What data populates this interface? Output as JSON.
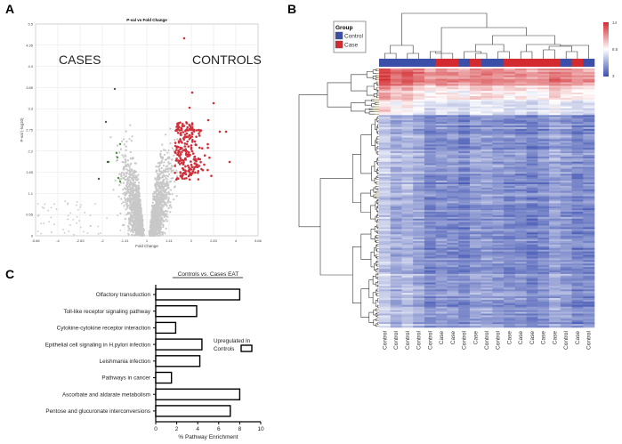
{
  "panel_labels": {
    "a": "A",
    "b": "B",
    "c": "C"
  },
  "chart_data": [
    {
      "type": "scatter",
      "panel": "A",
      "title": "P-val vs Fold Change",
      "xlabel": "Fold Change",
      "ylabel": "P-val (-log10)",
      "x_ticks": [
        "-5.66",
        "-4",
        "-2.83",
        "-2",
        "-1.41",
        "1",
        "1.41",
        "2",
        "2.83",
        "4",
        "5.66"
      ],
      "y_ticks": [
        "0",
        "0.55",
        "1.1",
        "1.65",
        "2.2",
        "2.75",
        "3.3",
        "3.85",
        "4.4",
        "4.95",
        "5.5"
      ],
      "ylim": [
        0,
        5.5
      ],
      "grid": true,
      "annotations": {
        "left": "CASES",
        "right": "CONTROLS"
      },
      "colors": {
        "not_significant": "#c8c8c8",
        "up_in_controls": "#d0303a",
        "up_in_cases": "#4a9a3a"
      }
    },
    {
      "type": "heatmap",
      "panel": "B",
      "legend_title": "Group",
      "legend": [
        {
          "name": "Control",
          "color": "#3b4fa8"
        },
        {
          "name": "Case",
          "color": "#d22a2f"
        }
      ],
      "columns": [
        "Control",
        "Control",
        "Control",
        "Control",
        "Control",
        "Case",
        "Case",
        "Control",
        "Case",
        "Control",
        "Control",
        "Case",
        "Case",
        "Case",
        "Case",
        "Case",
        "Control",
        "Case",
        "Control"
      ],
      "color_scale": {
        "min": 3,
        "mid": 8.5,
        "max": 14,
        "low_color": "#3b4fb0",
        "mid_color": "#ffffff",
        "high_color": "#d22a2f",
        "tick_labels": [
          "14",
          "8.5",
          "3"
        ]
      }
    },
    {
      "type": "bar",
      "orientation": "horizontal",
      "panel": "C",
      "title": "Controls vs. Cases EAT",
      "categories": [
        "Olfactory transduction",
        "Toll-like receptor signaling pathway",
        "Cytokine-cytokine receptor interaction",
        "Epithelial cell signaling in H.pylori infection",
        "Leishmania infection",
        "Pathways in cancer",
        "Ascorbate and aldarate metabolism",
        "Pentose and glucuronate interconversions"
      ],
      "series": [
        {
          "name": "Upregulated In Controls",
          "values": [
            8.0,
            3.9,
            1.9,
            4.4,
            4.2,
            1.5,
            8.0,
            7.1
          ]
        }
      ],
      "xlabel": "% Pathway Enrichment",
      "xlim": [
        0,
        10
      ],
      "x_ticks": [
        "0",
        "2",
        "4",
        "6",
        "8",
        "10"
      ],
      "legend_label_lines": [
        "Upregulated In",
        "Controls"
      ]
    }
  ]
}
